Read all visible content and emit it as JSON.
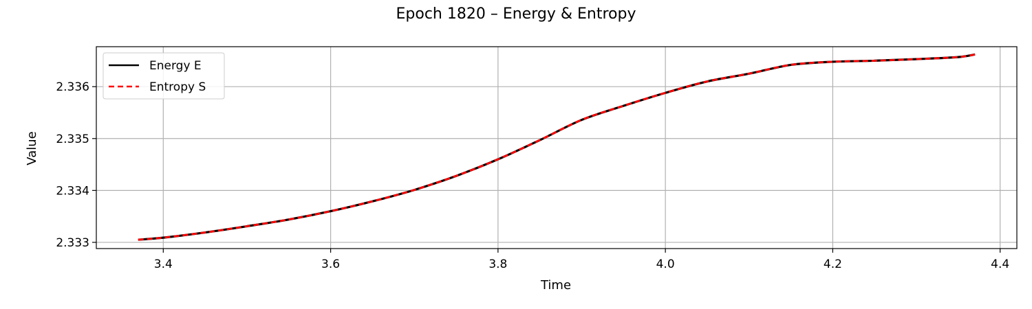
{
  "chart_data": {
    "type": "line",
    "title": "Epoch 1820 – Energy & Entropy",
    "xlabel": "Time",
    "ylabel": "Value",
    "xlim": [
      3.32,
      4.42
    ],
    "ylim": [
      2.33288,
      2.33677
    ],
    "xticks": [
      3.4,
      3.6,
      3.8,
      4.0,
      4.2,
      4.4
    ],
    "xtick_labels": [
      "3.4",
      "3.6",
      "3.8",
      "4.0",
      "4.2",
      "4.4"
    ],
    "yticks": [
      2.333,
      2.334,
      2.335,
      2.336
    ],
    "ytick_labels": [
      "2.333",
      "2.334",
      "2.335",
      "2.336"
    ],
    "grid": true,
    "legend_position": "top-left",
    "series": [
      {
        "name": "Energy E",
        "color": "#000000",
        "style": "solid",
        "x": [
          3.37,
          3.4,
          3.45,
          3.5,
          3.55,
          3.6,
          3.65,
          3.7,
          3.75,
          3.8,
          3.85,
          3.9,
          3.95,
          4.0,
          4.05,
          4.1,
          4.15,
          4.2,
          4.25,
          4.3,
          4.35,
          4.37
        ],
        "y": [
          2.33305,
          2.33309,
          2.33319,
          2.33331,
          2.33344,
          2.3336,
          2.33379,
          2.33401,
          2.33428,
          2.3346,
          2.33497,
          2.33536,
          2.33563,
          2.33588,
          2.3361,
          2.33625,
          2.33642,
          2.33648,
          2.3365,
          2.33653,
          2.33657,
          2.33662
        ]
      },
      {
        "name": "Entropy S",
        "color": "#ff0000",
        "style": "dashed",
        "x": [
          3.37,
          3.4,
          3.45,
          3.5,
          3.55,
          3.6,
          3.65,
          3.7,
          3.75,
          3.8,
          3.85,
          3.9,
          3.95,
          4.0,
          4.05,
          4.1,
          4.15,
          4.2,
          4.25,
          4.3,
          4.35,
          4.37
        ],
        "y": [
          2.33305,
          2.33309,
          2.33319,
          2.33331,
          2.33344,
          2.3336,
          2.33379,
          2.33401,
          2.33428,
          2.3346,
          2.33497,
          2.33536,
          2.33563,
          2.33588,
          2.3361,
          2.33625,
          2.33642,
          2.33648,
          2.3365,
          2.33653,
          2.33657,
          2.33662
        ]
      }
    ]
  }
}
